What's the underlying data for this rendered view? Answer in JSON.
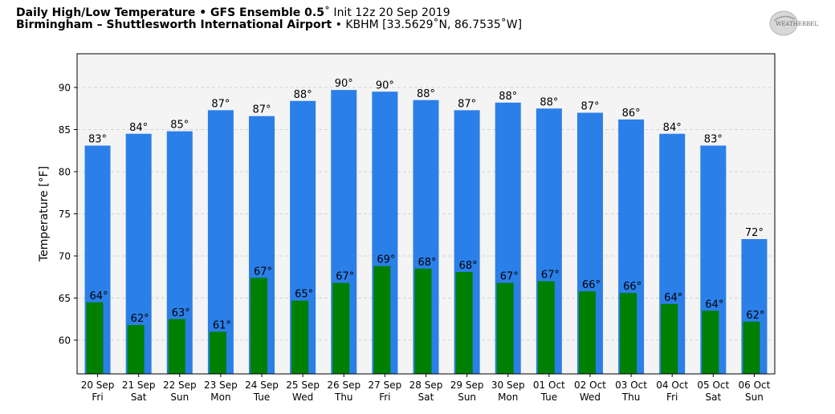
{
  "header": {
    "title_bold": "Daily High/Low Temperature • GFS Ensemble 0.5",
    "title_rest": "˚ Init 12z 20 Sep 2019",
    "subtitle_bold": "Birmingham – Shuttlesworth International Airport",
    "subtitle_rest": " • KBHM [33.5629˚N, 86.7535˚W]",
    "logo_text": "WEATHERBELL"
  },
  "chart_data": {
    "type": "bar",
    "ylabel": "Temperature [°F]",
    "ylim": [
      56,
      94
    ],
    "yticks": [
      60,
      65,
      70,
      75,
      80,
      85,
      90
    ],
    "grid": true,
    "categories": [
      {
        "date": "20 Sep",
        "day": "Fri"
      },
      {
        "date": "21 Sep",
        "day": "Sat"
      },
      {
        "date": "22 Sep",
        "day": "Sun"
      },
      {
        "date": "23 Sep",
        "day": "Mon"
      },
      {
        "date": "24 Sep",
        "day": "Tue"
      },
      {
        "date": "25 Sep",
        "day": "Wed"
      },
      {
        "date": "26 Sep",
        "day": "Thu"
      },
      {
        "date": "27 Sep",
        "day": "Fri"
      },
      {
        "date": "28 Sep",
        "day": "Sat"
      },
      {
        "date": "29 Sep",
        "day": "Sun"
      },
      {
        "date": "30 Sep",
        "day": "Mon"
      },
      {
        "date": "01 Oct",
        "day": "Tue"
      },
      {
        "date": "02 Oct",
        "day": "Wed"
      },
      {
        "date": "03 Oct",
        "day": "Thu"
      },
      {
        "date": "04 Oct",
        "day": "Fri"
      },
      {
        "date": "05 Oct",
        "day": "Sat"
      },
      {
        "date": "06 Oct",
        "day": "Sun"
      }
    ],
    "series": [
      {
        "color": "#2b7fe8",
        "values": [
          83.1,
          84.5,
          84.8,
          87.3,
          86.6,
          88.4,
          89.7,
          89.5,
          88.5,
          87.3,
          88.2,
          87.5,
          87.0,
          86.2,
          84.5,
          83.1,
          72.0
        ],
        "labels": [
          "83°",
          "84°",
          "85°",
          "87°",
          "87°",
          "88°",
          "90°",
          "90°",
          "88°",
          "87°",
          "88°",
          "88°",
          "87°",
          "86°",
          "84°",
          "83°",
          "72°"
        ]
      },
      {
        "color": "#008000",
        "values": [
          64.5,
          61.8,
          62.5,
          61.0,
          67.4,
          64.7,
          66.8,
          68.8,
          68.5,
          68.1,
          66.8,
          67.0,
          65.8,
          65.6,
          64.3,
          63.5,
          62.2
        ],
        "labels": [
          "64°",
          "62°",
          "63°",
          "61°",
          "67°",
          "65°",
          "67°",
          "69°",
          "68°",
          "68°",
          "67°",
          "67°",
          "66°",
          "66°",
          "64°",
          "64°",
          "62°"
        ]
      }
    ]
  }
}
